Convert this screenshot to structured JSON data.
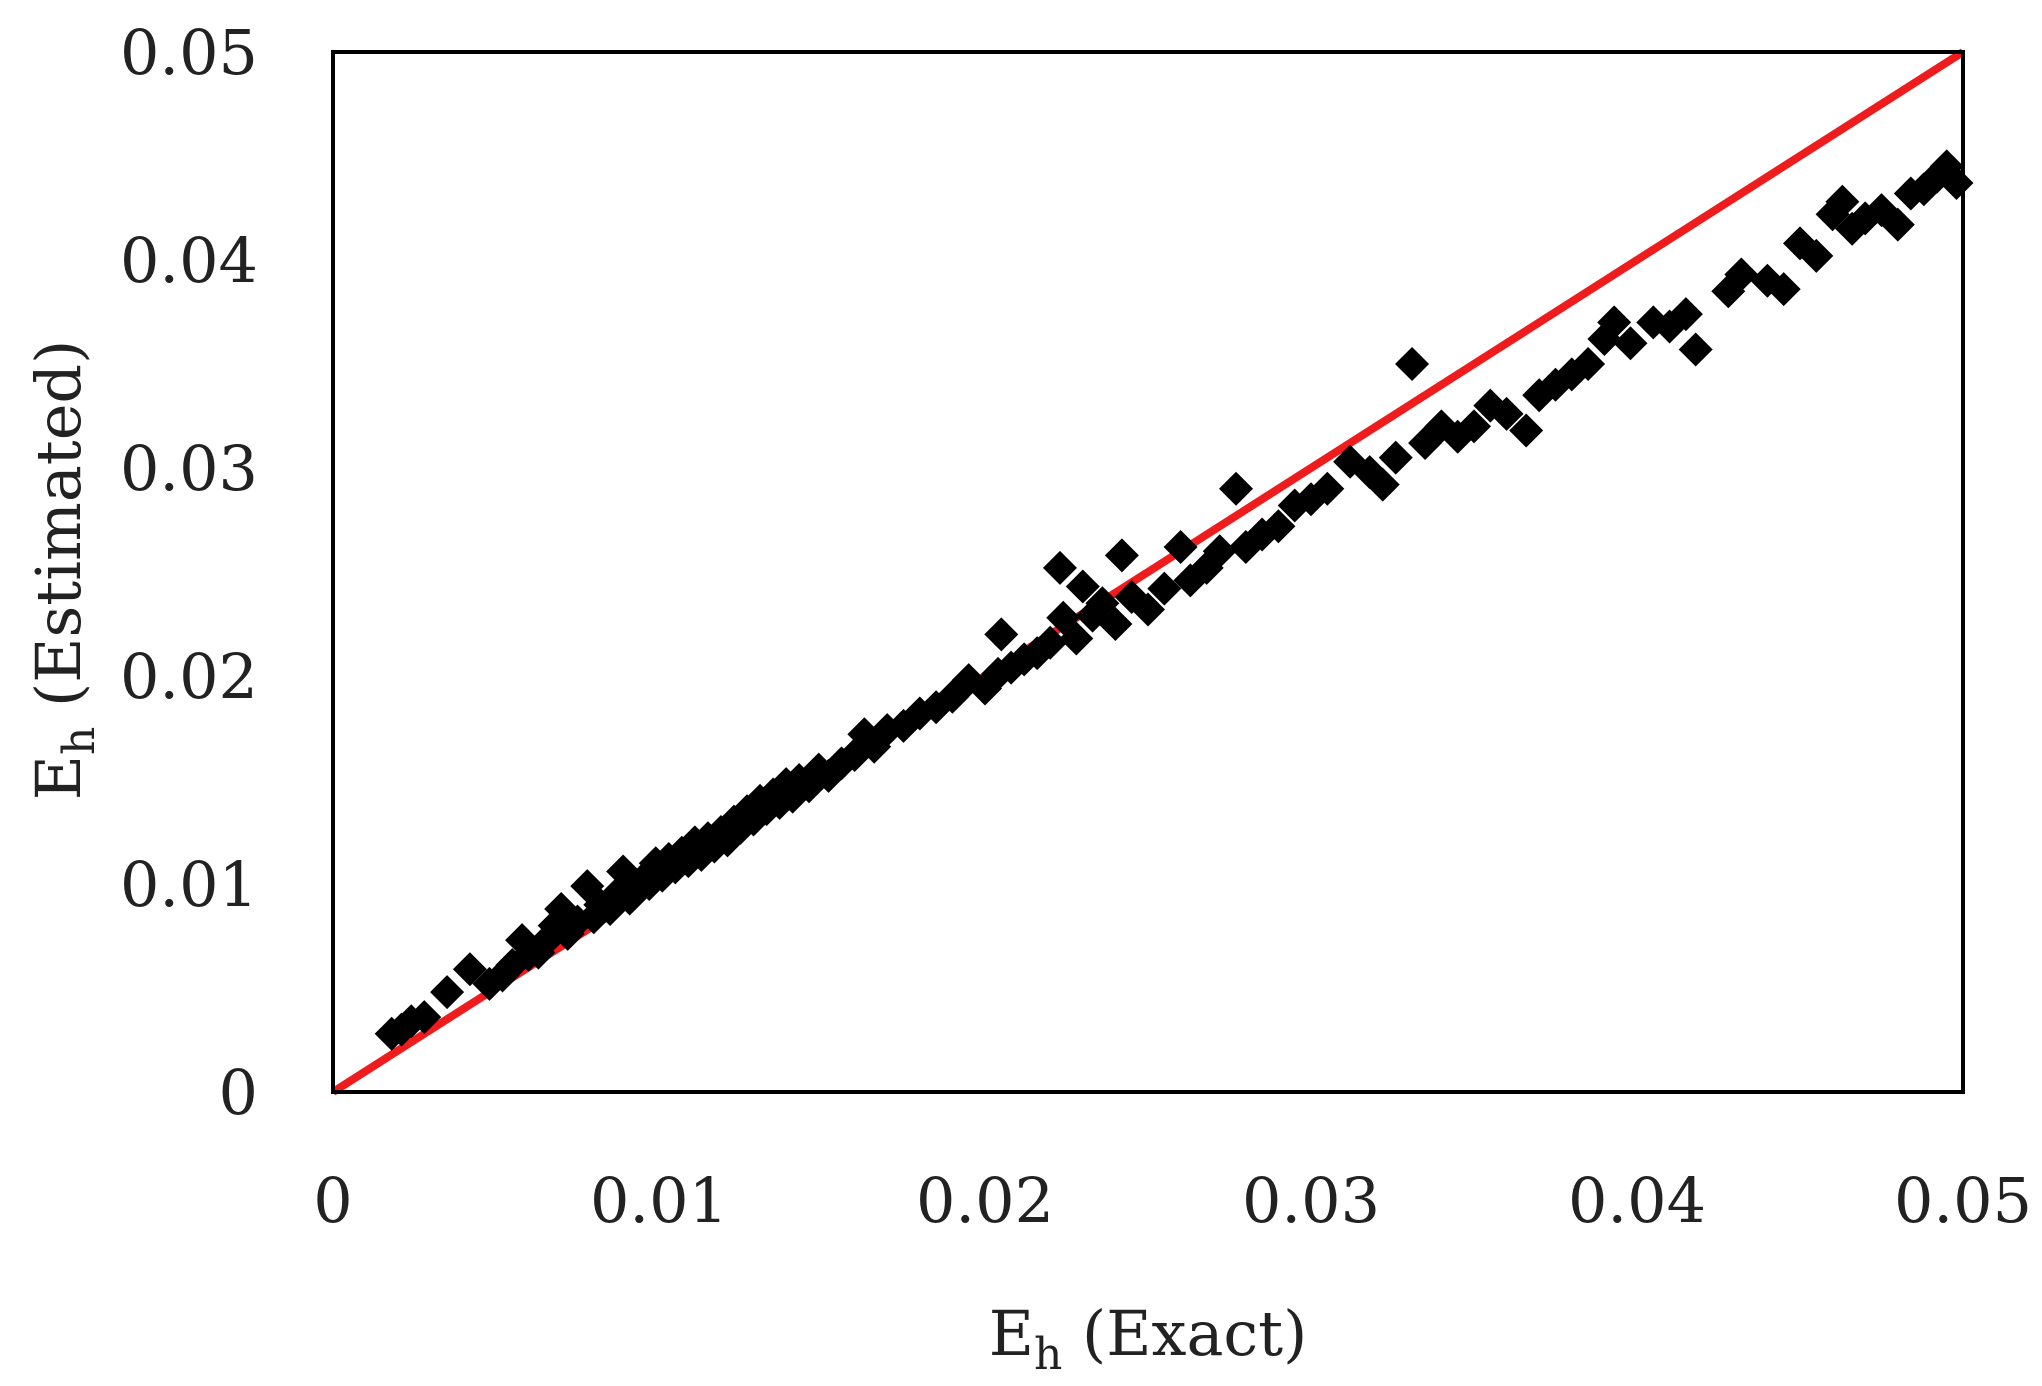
{
  "chart_data": {
    "type": "scatter",
    "xlabel": {
      "main": "E",
      "sub": "h",
      "rest": " (Exact)"
    },
    "ylabel": {
      "main": "E",
      "sub": "h",
      "rest": " (Estimated)"
    },
    "xlim": [
      0,
      0.05
    ],
    "ylim": [
      0,
      0.05
    ],
    "x_ticks": [
      "0",
      "0.01",
      "0.02",
      "0.03",
      "0.04",
      "0.05"
    ],
    "y_ticks": [
      "0",
      "0.01",
      "0.02",
      "0.03",
      "0.04",
      "0.05"
    ],
    "grid": false,
    "legend": "none",
    "colors": {
      "points": "#000000",
      "line": "#ee1c1c",
      "frame": "#000000"
    },
    "reference_line": {
      "x": [
        0,
        0.05
      ],
      "y": [
        0,
        0.05
      ]
    },
    "series": [
      {
        "marker": "diamond",
        "points": [
          [
            0.0018,
            0.0028
          ],
          [
            0.0021,
            0.003
          ],
          [
            0.0024,
            0.0034
          ],
          [
            0.0028,
            0.0036
          ],
          [
            0.0035,
            0.0048
          ],
          [
            0.0042,
            0.0059
          ],
          [
            0.0048,
            0.0052
          ],
          [
            0.0052,
            0.0056
          ],
          [
            0.0055,
            0.0061
          ],
          [
            0.0058,
            0.0073
          ],
          [
            0.006,
            0.0066
          ],
          [
            0.0063,
            0.0067
          ],
          [
            0.0065,
            0.0072
          ],
          [
            0.0068,
            0.008
          ],
          [
            0.007,
            0.0088
          ],
          [
            0.0072,
            0.0076
          ],
          [
            0.0075,
            0.0082
          ],
          [
            0.0078,
            0.0099
          ],
          [
            0.008,
            0.0084
          ],
          [
            0.0082,
            0.009
          ],
          [
            0.0085,
            0.0088
          ],
          [
            0.0087,
            0.0095
          ],
          [
            0.0089,
            0.0106
          ],
          [
            0.0091,
            0.0093
          ],
          [
            0.0093,
            0.0098
          ],
          [
            0.0095,
            0.0102
          ],
          [
            0.0097,
            0.01
          ],
          [
            0.0099,
            0.011
          ],
          [
            0.0101,
            0.0104
          ],
          [
            0.0103,
            0.0112
          ],
          [
            0.0105,
            0.0108
          ],
          [
            0.0107,
            0.0115
          ],
          [
            0.0109,
            0.0111
          ],
          [
            0.0111,
            0.012
          ],
          [
            0.0113,
            0.0114
          ],
          [
            0.0115,
            0.0122
          ],
          [
            0.0117,
            0.0118
          ],
          [
            0.0119,
            0.0125
          ],
          [
            0.0121,
            0.0121
          ],
          [
            0.0123,
            0.013
          ],
          [
            0.0125,
            0.0127
          ],
          [
            0.0127,
            0.0135
          ],
          [
            0.0129,
            0.0131
          ],
          [
            0.0131,
            0.014
          ],
          [
            0.0133,
            0.0136
          ],
          [
            0.0135,
            0.0143
          ],
          [
            0.0137,
            0.0139
          ],
          [
            0.0139,
            0.0148
          ],
          [
            0.0141,
            0.0142
          ],
          [
            0.0143,
            0.015
          ],
          [
            0.0146,
            0.0147
          ],
          [
            0.0149,
            0.0155
          ],
          [
            0.0152,
            0.0152
          ],
          [
            0.0156,
            0.0158
          ],
          [
            0.016,
            0.0162
          ],
          [
            0.0163,
            0.0172
          ],
          [
            0.0166,
            0.0166
          ],
          [
            0.017,
            0.0174
          ],
          [
            0.0175,
            0.0176
          ],
          [
            0.018,
            0.0182
          ],
          [
            0.0185,
            0.0185
          ],
          [
            0.019,
            0.019
          ],
          [
            0.0195,
            0.0198
          ],
          [
            0.02,
            0.0194
          ],
          [
            0.0204,
            0.0201
          ],
          [
            0.0205,
            0.022
          ],
          [
            0.0208,
            0.0204
          ],
          [
            0.0212,
            0.0208
          ],
          [
            0.0216,
            0.0211
          ],
          [
            0.022,
            0.0216
          ],
          [
            0.0223,
            0.0252
          ],
          [
            0.0224,
            0.0228
          ],
          [
            0.0228,
            0.0218
          ],
          [
            0.023,
            0.0243
          ],
          [
            0.0233,
            0.0229
          ],
          [
            0.0236,
            0.0235
          ],
          [
            0.024,
            0.0225
          ],
          [
            0.0242,
            0.0258
          ],
          [
            0.0245,
            0.0238
          ],
          [
            0.025,
            0.0232
          ],
          [
            0.0255,
            0.0242
          ],
          [
            0.026,
            0.0262
          ],
          [
            0.0263,
            0.0246
          ],
          [
            0.0268,
            0.0252
          ],
          [
            0.0272,
            0.026
          ],
          [
            0.0277,
            0.029
          ],
          [
            0.028,
            0.0262
          ],
          [
            0.0285,
            0.0268
          ],
          [
            0.029,
            0.0272
          ],
          [
            0.0295,
            0.0282
          ],
          [
            0.03,
            0.0285
          ],
          [
            0.0305,
            0.029
          ],
          [
            0.0312,
            0.0303
          ],
          [
            0.0318,
            0.0298
          ],
          [
            0.0322,
            0.0292
          ],
          [
            0.0326,
            0.0305
          ],
          [
            0.0331,
            0.035
          ],
          [
            0.0335,
            0.0312
          ],
          [
            0.034,
            0.032
          ],
          [
            0.0345,
            0.0315
          ],
          [
            0.035,
            0.032
          ],
          [
            0.0355,
            0.033
          ],
          [
            0.036,
            0.0326
          ],
          [
            0.0366,
            0.0318
          ],
          [
            0.037,
            0.0335
          ],
          [
            0.0375,
            0.034
          ],
          [
            0.038,
            0.0345
          ],
          [
            0.0385,
            0.035
          ],
          [
            0.039,
            0.0362
          ],
          [
            0.0393,
            0.037
          ],
          [
            0.0398,
            0.036
          ],
          [
            0.0405,
            0.037
          ],
          [
            0.041,
            0.0368
          ],
          [
            0.0415,
            0.0374
          ],
          [
            0.0418,
            0.0357
          ],
          [
            0.0428,
            0.0385
          ],
          [
            0.0432,
            0.0393
          ],
          [
            0.044,
            0.039
          ],
          [
            0.0445,
            0.0386
          ],
          [
            0.045,
            0.0408
          ],
          [
            0.0455,
            0.0402
          ],
          [
            0.046,
            0.0422
          ],
          [
            0.0463,
            0.0428
          ],
          [
            0.0466,
            0.0415
          ],
          [
            0.047,
            0.042
          ],
          [
            0.0475,
            0.0424
          ],
          [
            0.048,
            0.0417
          ],
          [
            0.0484,
            0.0432
          ],
          [
            0.0488,
            0.0434
          ],
          [
            0.0492,
            0.044
          ],
          [
            0.0495,
            0.0445
          ],
          [
            0.0498,
            0.0437
          ]
        ]
      }
    ]
  }
}
